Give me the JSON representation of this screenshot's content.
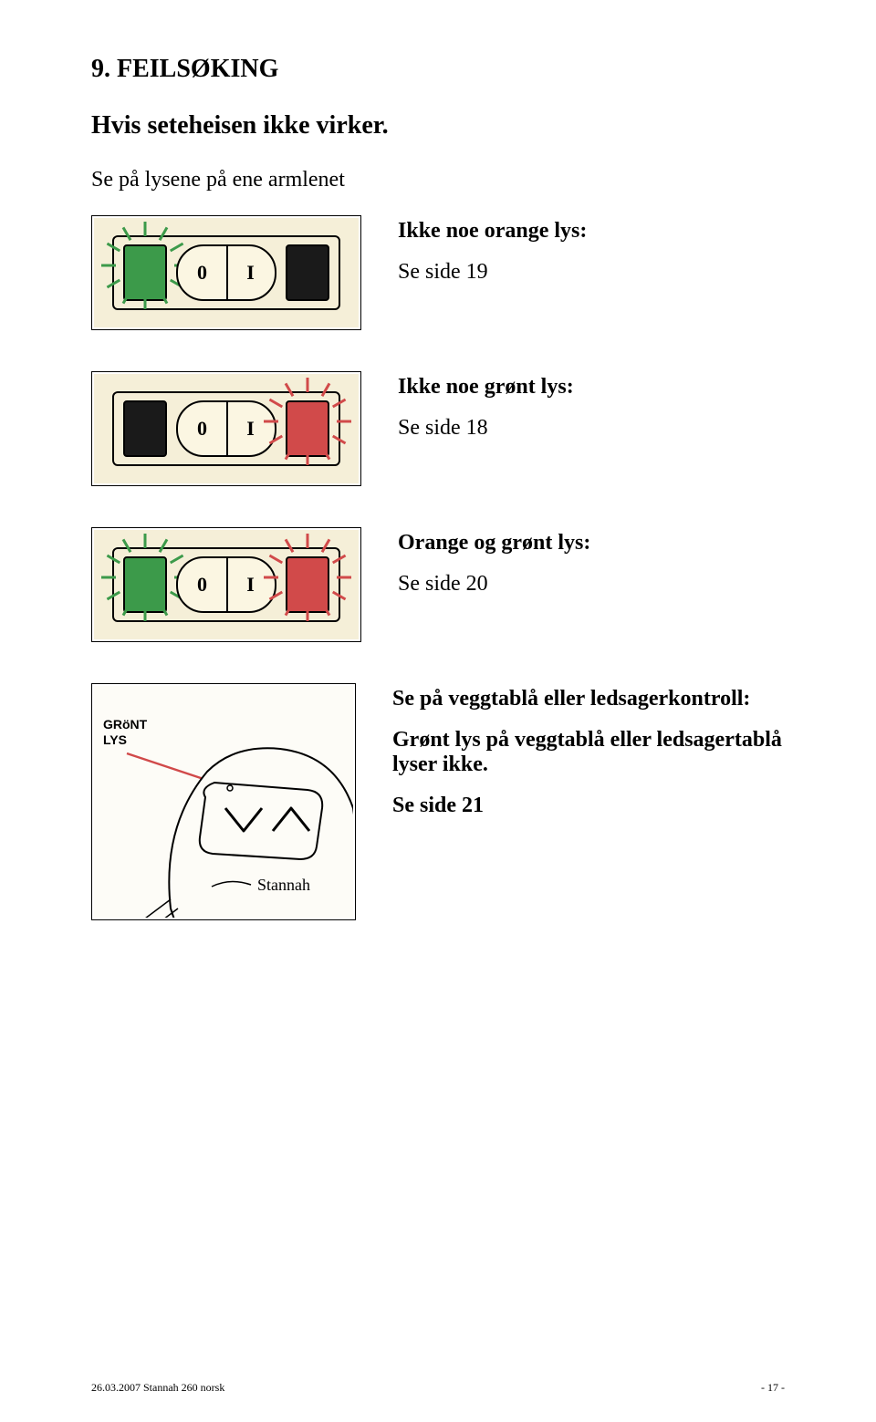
{
  "page": {
    "title": "9. FEILSØKING",
    "subtitle": "Hvis seteheisen ikke virker.",
    "intro": "Se på lysene på ene armlenet"
  },
  "sections": [
    {
      "bold": "Ikke noe orange lys:",
      "ref": "Se side 19",
      "diagram": {
        "left_led": "green_lit",
        "right_led": "dark",
        "left_rays": true,
        "right_rays": false,
        "ray_color_left": "g",
        "ray_color_right": "r"
      }
    },
    {
      "bold": "Ikke noe grønt lys:",
      "ref": "Se side 18",
      "diagram": {
        "left_led": "dark",
        "right_led": "red_lit",
        "left_rays": false,
        "right_rays": true,
        "ray_color_left": "g",
        "ray_color_right": "r"
      }
    },
    {
      "bold": "Orange og grønt lys:",
      "ref": "Se side 20",
      "diagram": {
        "left_led": "green_lit",
        "right_led": "red_lit",
        "left_rays": true,
        "right_rays": true,
        "ray_color_left": "g",
        "ray_color_right": "r"
      }
    }
  ],
  "remote": {
    "label_line1": "GRöNT",
    "label_line2": "LYS",
    "pointer_color": "#d14a4a",
    "bold": "Se på veggtablå eller ledsagerkontroll:",
    "desc": "Grønt lys på veggtablå eller ledsagertablå lyser ikke.",
    "ref": "Se side 21",
    "brand": "Stannah"
  },
  "colors": {
    "cream_bg": "#f5efd8",
    "green": "#3c9a4a",
    "red": "#d14a4a",
    "dark": "#1a1a1a",
    "paper": "#fdfcf7"
  },
  "rocker": {
    "left_glyph": "0",
    "right_glyph": "I"
  },
  "footer": {
    "left": "26.03.2007 Stannah 260 norsk",
    "right": "- 17 -"
  }
}
